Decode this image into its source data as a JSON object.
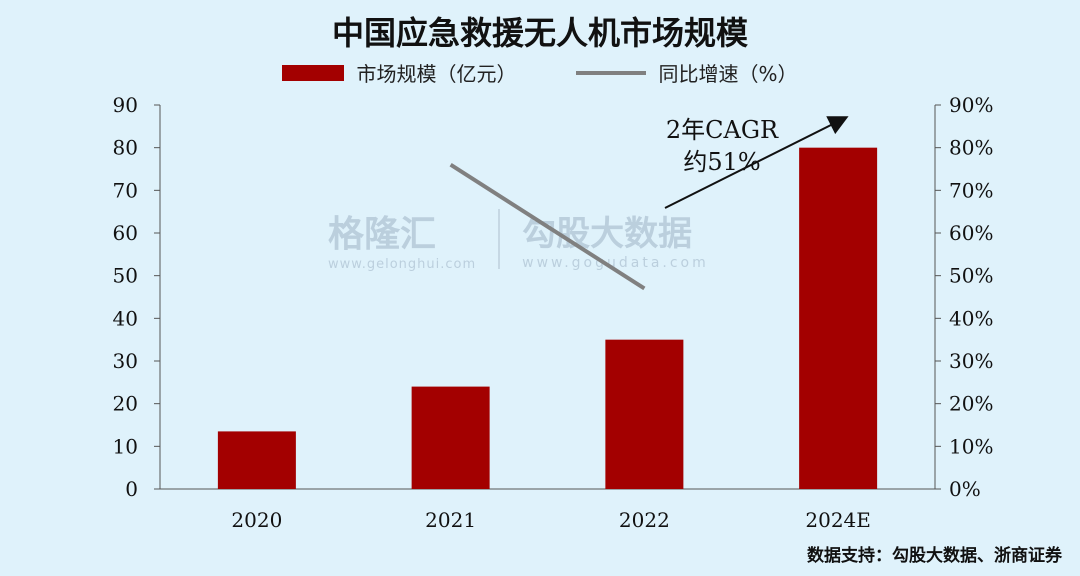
{
  "chart_data": {
    "type": "bar",
    "title": "中国应急救援无人机市场规模",
    "categories": [
      "2020",
      "2021",
      "2022",
      "2024E"
    ],
    "series": [
      {
        "name": "市场规模（亿元）",
        "type": "bar",
        "axis": "left",
        "color": "#a30000",
        "values": [
          13.5,
          24,
          35,
          80
        ]
      },
      {
        "name": "同比增速（%）",
        "type": "line",
        "axis": "right",
        "color": "#808080",
        "points": [
          {
            "x": "2021",
            "y": 76
          },
          {
            "x": "2022",
            "y": 47
          }
        ]
      }
    ],
    "y_left": {
      "min": 0,
      "max": 90,
      "step": 10,
      "ticks": [
        "0",
        "10",
        "20",
        "30",
        "40",
        "50",
        "60",
        "70",
        "80",
        "90"
      ]
    },
    "y_right": {
      "min": 0,
      "max": 90,
      "step": 10,
      "ticks": [
        "0%",
        "10%",
        "20%",
        "30%",
        "40%",
        "50%",
        "60%",
        "70%",
        "80%",
        "90%"
      ]
    },
    "annotation": {
      "line1": "2年CAGR",
      "line2": "约51%"
    },
    "grid": false,
    "legend_position": "top-center"
  },
  "watermark": {
    "brand1": "格隆汇",
    "brand1_url": "www.gelonghui.com",
    "brand2": "勾股大数据",
    "brand2_url": "www.gogudata.com"
  },
  "source": "数据支持：勾股大数据、浙商证券"
}
